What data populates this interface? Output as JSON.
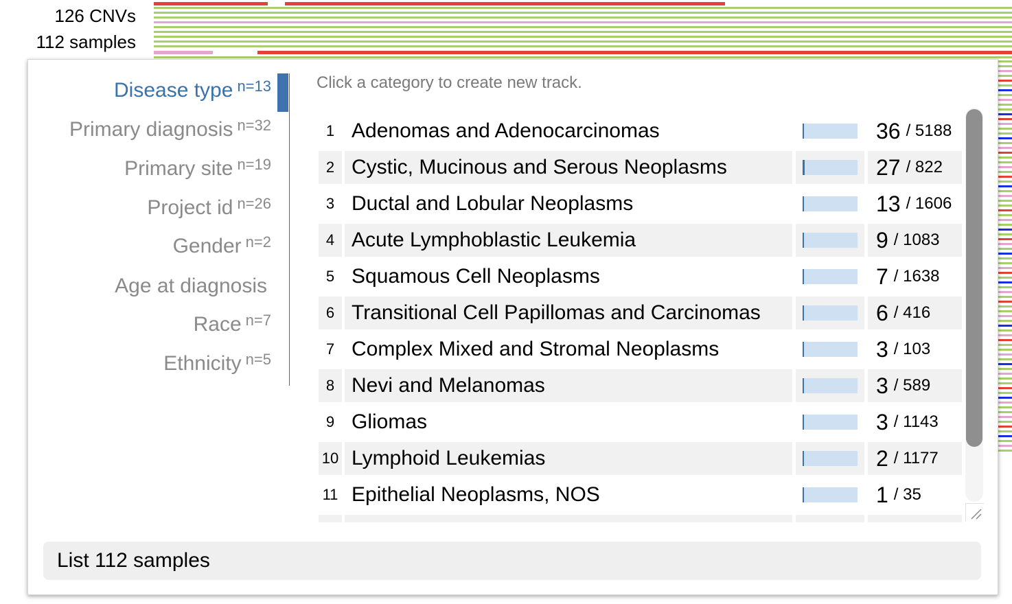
{
  "header": {
    "cnv_count": "126 CNVs",
    "sample_count": "112 samples"
  },
  "colors": {
    "gain": "#e34234",
    "loss": "#1a2fe0",
    "track_green": "#a8cf6a",
    "track_pink": "#e4a6cf",
    "accent": "#3a73ab",
    "bar_bg": "#cfe0f3"
  },
  "tabs": [
    {
      "label": "Disease type",
      "n": "n=13",
      "active": true
    },
    {
      "label": "Primary diagnosis",
      "n": "n=32",
      "active": false
    },
    {
      "label": "Primary site",
      "n": "n=19",
      "active": false
    },
    {
      "label": "Project id",
      "n": "n=26",
      "active": false
    },
    {
      "label": "Gender",
      "n": "n=2",
      "active": false
    },
    {
      "label": "Age at diagnosis",
      "n": "",
      "active": false
    },
    {
      "label": "Race",
      "n": "n=7",
      "active": false
    },
    {
      "label": "Ethnicity",
      "n": "n=5",
      "active": false
    }
  ],
  "hint": "Click a category to create new track.",
  "categories": [
    {
      "num": "1",
      "label": "Adenomas and Adenocarcinomas",
      "count": "36",
      "total": "/ 5188",
      "fraction": 0.0069
    },
    {
      "num": "2",
      "label": "Cystic, Mucinous and Serous Neoplasms",
      "count": "27",
      "total": "/ 822",
      "fraction": 0.0328
    },
    {
      "num": "3",
      "label": "Ductal and Lobular Neoplasms",
      "count": "13",
      "total": "/ 1606",
      "fraction": 0.0081
    },
    {
      "num": "4",
      "label": "Acute Lymphoblastic Leukemia",
      "count": "9",
      "total": "/ 1083",
      "fraction": 0.0083
    },
    {
      "num": "5",
      "label": "Squamous Cell Neoplasms",
      "count": "7",
      "total": "/ 1638",
      "fraction": 0.0043
    },
    {
      "num": "6",
      "label": "Transitional Cell Papillomas and Carcinomas",
      "count": "6",
      "total": "/ 416",
      "fraction": 0.0144
    },
    {
      "num": "7",
      "label": "Complex Mixed and Stromal Neoplasms",
      "count": "3",
      "total": "/ 103",
      "fraction": 0.0291
    },
    {
      "num": "8",
      "label": "Nevi and Melanomas",
      "count": "3",
      "total": "/ 589",
      "fraction": 0.0051
    },
    {
      "num": "9",
      "label": "Gliomas",
      "count": "3",
      "total": "/ 1143",
      "fraction": 0.0026
    },
    {
      "num": "10",
      "label": "Lymphoid Leukemias",
      "count": "2",
      "total": "/ 1177",
      "fraction": 0.0017
    },
    {
      "num": "11",
      "label": "Epithelial Neoplasms, NOS",
      "count": "1",
      "total": "/ 35",
      "fraction": 0.0286
    },
    {
      "num": "",
      "label": "",
      "count": "",
      "total": "",
      "fraction": 0
    }
  ],
  "list_button": "List 112 samples"
}
